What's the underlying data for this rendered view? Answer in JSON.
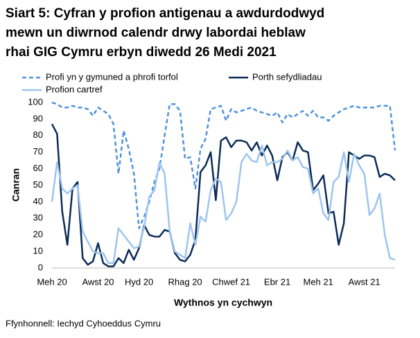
{
  "chart_data": {
    "type": "line",
    "title": [
      "Siart 5: Cyfran y profion antigenau a awdurdodwyd",
      "mewn un diwrnod calendr drwy labordai heblaw",
      "rhai GIG Cymru erbyn diwedd 26 Medi 2021"
    ],
    "y_label": "Canran",
    "x_label": "Wythnos yn cychwyn",
    "source": "Ffynhonnell: Iechyd Cyhoeddus Cymru",
    "categories": [
      "Meh 20",
      null,
      null,
      null,
      null,
      null,
      null,
      null,
      null,
      "Awst 20",
      null,
      null,
      null,
      null,
      null,
      null,
      null,
      "Hyd 20",
      null,
      null,
      null,
      null,
      null,
      null,
      null,
      null,
      "Rhag 20",
      null,
      null,
      null,
      null,
      null,
      null,
      null,
      null,
      "Chwef 21",
      null,
      null,
      null,
      null,
      null,
      null,
      null,
      null,
      "Ebr 21",
      null,
      null,
      null,
      null,
      null,
      null,
      null,
      "Meh 21",
      null,
      null,
      null,
      null,
      null,
      null,
      null,
      null,
      "Awst 21",
      null,
      null,
      null,
      null,
      null,
      null
    ],
    "ylim": [
      0,
      100
    ],
    "yticks": [
      0,
      10,
      20,
      30,
      40,
      50,
      60,
      70,
      80,
      90,
      100
    ],
    "series": [
      {
        "name": "Profi yn y gymuned a phrofi torfol",
        "color": "#4f93dc",
        "dashed": true,
        "values": [
          100,
          99,
          97,
          97,
          98,
          97,
          97,
          96,
          92,
          97,
          95,
          93,
          87,
          57,
          83,
          72,
          57,
          24,
          31,
          40,
          52,
          60,
          80,
          99,
          99,
          95,
          66,
          67,
          48,
          72,
          78,
          96,
          97,
          98,
          89,
          96,
          94,
          95,
          96,
          97,
          95,
          94,
          93,
          92,
          94,
          88,
          93,
          91,
          93,
          95,
          92,
          95,
          91,
          91,
          89,
          92,
          94,
          96,
          97,
          98,
          97,
          97,
          97,
          97,
          98,
          98,
          98,
          71
        ]
      },
      {
        "name": "Porth sefydliadau",
        "color": "#0b2b57",
        "dashed": false,
        "values": [
          87,
          81,
          34,
          14,
          48,
          52,
          6,
          2,
          4,
          15,
          3,
          1,
          1,
          6,
          3,
          11,
          5,
          12,
          26,
          20,
          19,
          19,
          23,
          22,
          9,
          5,
          4,
          8,
          17,
          58,
          62,
          70,
          41,
          77,
          79,
          73,
          77,
          77,
          76,
          71,
          76,
          68,
          74,
          68,
          53,
          67,
          70,
          65,
          76,
          71,
          70,
          47,
          51,
          56,
          33,
          34,
          14,
          27,
          70,
          68,
          66,
          68,
          68,
          67,
          55,
          57,
          56,
          53
        ]
      },
      {
        "name": "Profion cartref",
        "color": "#9ec5ee",
        "dashed": false,
        "values": [
          40,
          64,
          48,
          45,
          48,
          50,
          22,
          16,
          10,
          9,
          9,
          3,
          3,
          24,
          20,
          16,
          12,
          13,
          25,
          43,
          47,
          64,
          57,
          22,
          10,
          8,
          6,
          27,
          14,
          31,
          28,
          47,
          54,
          52,
          29,
          33,
          40,
          64,
          69,
          65,
          64,
          74,
          62,
          64,
          64,
          66,
          71,
          65,
          67,
          61,
          60,
          45,
          48,
          33,
          29,
          52,
          55,
          70,
          52,
          69,
          62,
          57,
          32,
          36,
          45,
          20,
          6,
          5
        ]
      }
    ]
  }
}
